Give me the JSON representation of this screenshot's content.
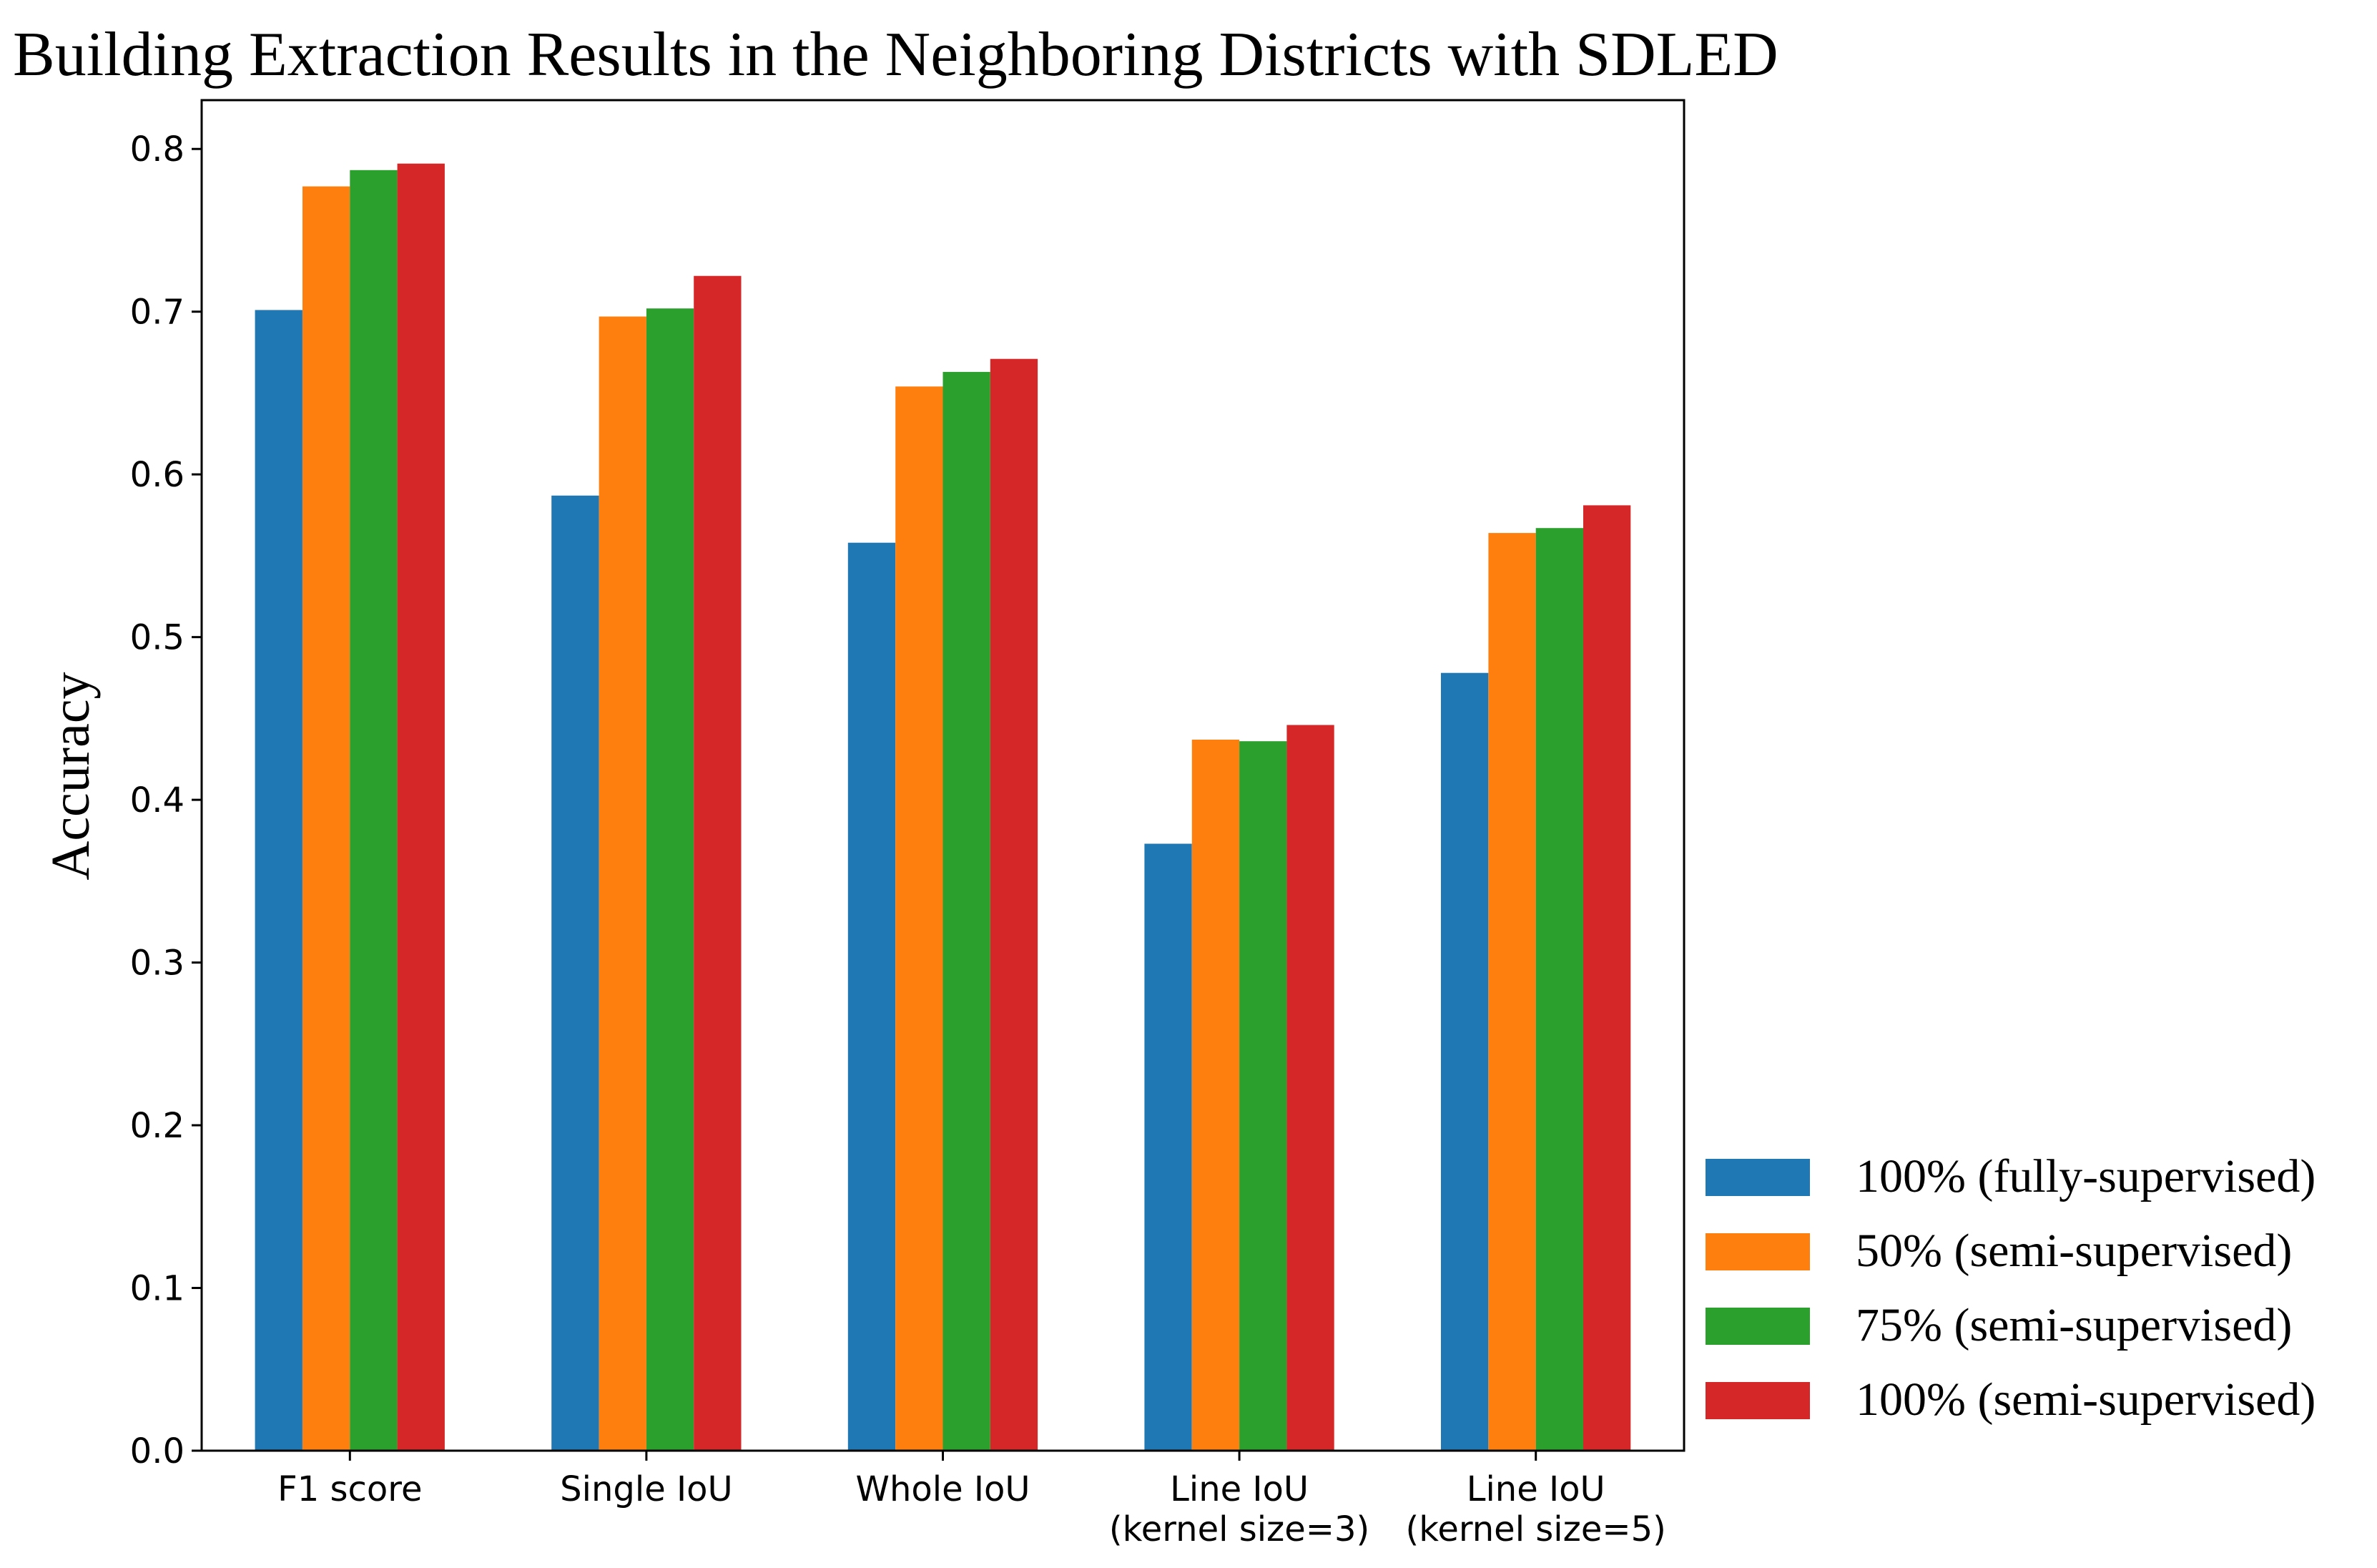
{
  "chart_data": {
    "type": "bar",
    "title": "Building Extraction Results in the Neighboring Districts with SDLED",
    "ylabel": "Accuracy",
    "xlabel": "",
    "ylim": [
      0.0,
      0.83
    ],
    "yticks": [
      0.0,
      0.1,
      0.2,
      0.3,
      0.4,
      0.5,
      0.6,
      0.7,
      0.8
    ],
    "categories": [
      [
        "F1 score"
      ],
      [
        "Single IoU"
      ],
      [
        "Whole IoU"
      ],
      [
        "Line IoU",
        "(kernel size=3)"
      ],
      [
        "Line IoU",
        "(kernel size=5)"
      ]
    ],
    "series": [
      {
        "name": "100% (fully-supervised)",
        "color": "#1f77b4",
        "values": [
          0.701,
          0.587,
          0.558,
          0.373,
          0.478
        ]
      },
      {
        "name": "50% (semi-supervised)",
        "color": "#ff7f0e",
        "values": [
          0.777,
          0.697,
          0.654,
          0.437,
          0.564
        ]
      },
      {
        "name": "75% (semi-supervised)",
        "color": "#2ca02c",
        "values": [
          0.787,
          0.702,
          0.663,
          0.436,
          0.567
        ]
      },
      {
        "name": "100% (semi-supervised)",
        "color": "#d62728",
        "values": [
          0.791,
          0.722,
          0.671,
          0.446,
          0.581
        ]
      }
    ],
    "grid": false,
    "legend_position": "lower-right outside"
  }
}
